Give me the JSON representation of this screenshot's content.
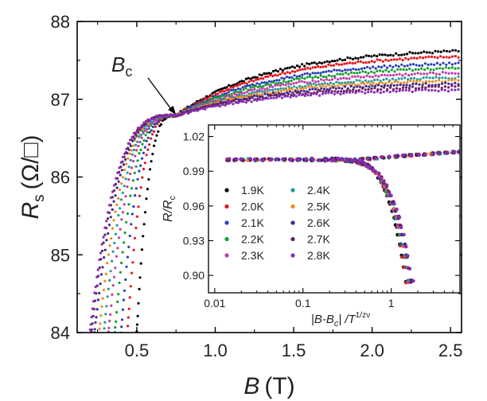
{
  "chart_data": [
    {
      "type": "scatter",
      "role": "main",
      "xlabel_main": "B",
      "xlabel_unit": "(T)",
      "ylabel_main": "R",
      "ylabel_sub": "s",
      "ylabel_unit": "(Ω/□)",
      "xlim": [
        0.12,
        2.57
      ],
      "ylim": [
        84,
        88
      ],
      "xticks": [
        0.5,
        1.0,
        1.5,
        2.0,
        2.5
      ],
      "yticks": [
        84,
        85,
        86,
        87,
        88
      ],
      "xtick_labels": [
        "0.5",
        "1.0",
        "1.5",
        "2.0",
        "2.5"
      ],
      "ytick_labels": [
        "84",
        "85",
        "86",
        "87",
        "88"
      ],
      "annotation": {
        "text_main": "B",
        "text_sub": "c",
        "arrow_to": [
          0.75,
          86.8
        ]
      },
      "crossing_point": {
        "B": 0.75,
        "R": 86.79
      },
      "series": [
        {
          "name": "1.9K",
          "color": "#000000",
          "marker": "square",
          "b_start": 0.5,
          "r_high": 87.62
        },
        {
          "name": "2.0K",
          "color": "#e8141c",
          "marker": "circle",
          "b_start": 0.44,
          "r_high": 87.55
        },
        {
          "name": "2.1K",
          "color": "#2a3fb8",
          "marker": "triangle-up",
          "b_start": 0.4,
          "r_high": 87.46
        },
        {
          "name": "2.2K",
          "color": "#14a02a",
          "marker": "triangle-down",
          "b_start": 0.36,
          "r_high": 87.4
        },
        {
          "name": "2.3K",
          "color": "#c43aa8",
          "marker": "diamond",
          "b_start": 0.32,
          "r_high": 87.34
        },
        {
          "name": "2.4K",
          "color": "#1e9aa0",
          "marker": "triangle-left",
          "b_start": 0.29,
          "r_high": 87.28
        },
        {
          "name": "2.5K",
          "color": "#f08a14",
          "marker": "triangle-right",
          "b_start": 0.26,
          "r_high": 87.24
        },
        {
          "name": "2.6K",
          "color": "#3a2a8c",
          "marker": "hexagon",
          "b_start": 0.23,
          "r_high": 87.2
        },
        {
          "name": "2.7K",
          "color": "#6a1e5a",
          "marker": "star",
          "b_start": 0.21,
          "r_high": 87.16
        },
        {
          "name": "2.8K",
          "color": "#8a2ab8",
          "marker": "pentagon",
          "b_start": 0.2,
          "r_high": 87.12
        }
      ]
    },
    {
      "type": "scatter",
      "role": "inset",
      "xscale": "log",
      "xlabel": "|B-B",
      "xlabel_sub": "c",
      "xlabel_mid": "| /T",
      "xlabel_sup": "1/zν",
      "ylabel": "R/R",
      "ylabel_sub": "c",
      "xlim": [
        0.0085,
        6
      ],
      "ylim": [
        0.885,
        1.03
      ],
      "xticks": [
        0.01,
        0.1,
        1
      ],
      "xtick_labels": [
        "0.01",
        "0.1",
        "1"
      ],
      "yticks": [
        0.9,
        0.93,
        0.96,
        0.99,
        1.02
      ],
      "ytick_labels": [
        "0.90",
        "0.93",
        "0.96",
        "0.99",
        "1.02"
      ],
      "legend_position": "lower-left",
      "collapse": {
        "plateau": 1.0,
        "upper_end": 1.007,
        "lower_end": 0.895,
        "drop_x": 1.6
      }
    }
  ]
}
